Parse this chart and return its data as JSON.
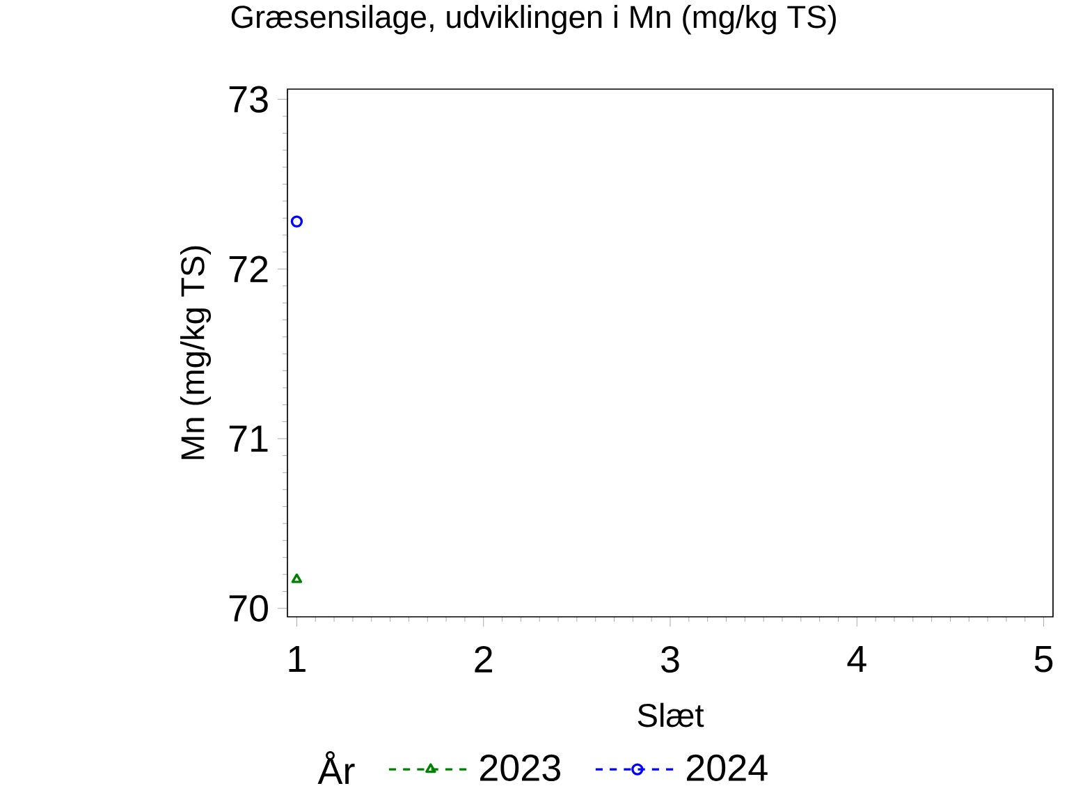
{
  "chart_data": {
    "type": "line",
    "title": "Græsensilage, udviklingen i Mn (mg/kg TS)",
    "xlabel": "Slæt",
    "ylabel": "Mn (mg/kg TS)",
    "legend_title": "År",
    "x": [
      1
    ],
    "series": [
      {
        "name": "2023",
        "color": "#008000",
        "marker": "triangle",
        "values": [
          70.17
        ]
      },
      {
        "name": "2024",
        "color": "#0000ff",
        "marker": "circle",
        "values": [
          72.28
        ]
      }
    ],
    "xlim": [
      0.95,
      5.05
    ],
    "ylim": [
      69.95,
      73.06
    ],
    "xticks": [
      1,
      2,
      3,
      4,
      5
    ],
    "yticks": [
      70,
      71,
      72,
      73
    ],
    "legend": "bottom",
    "line_style": "dashed"
  }
}
